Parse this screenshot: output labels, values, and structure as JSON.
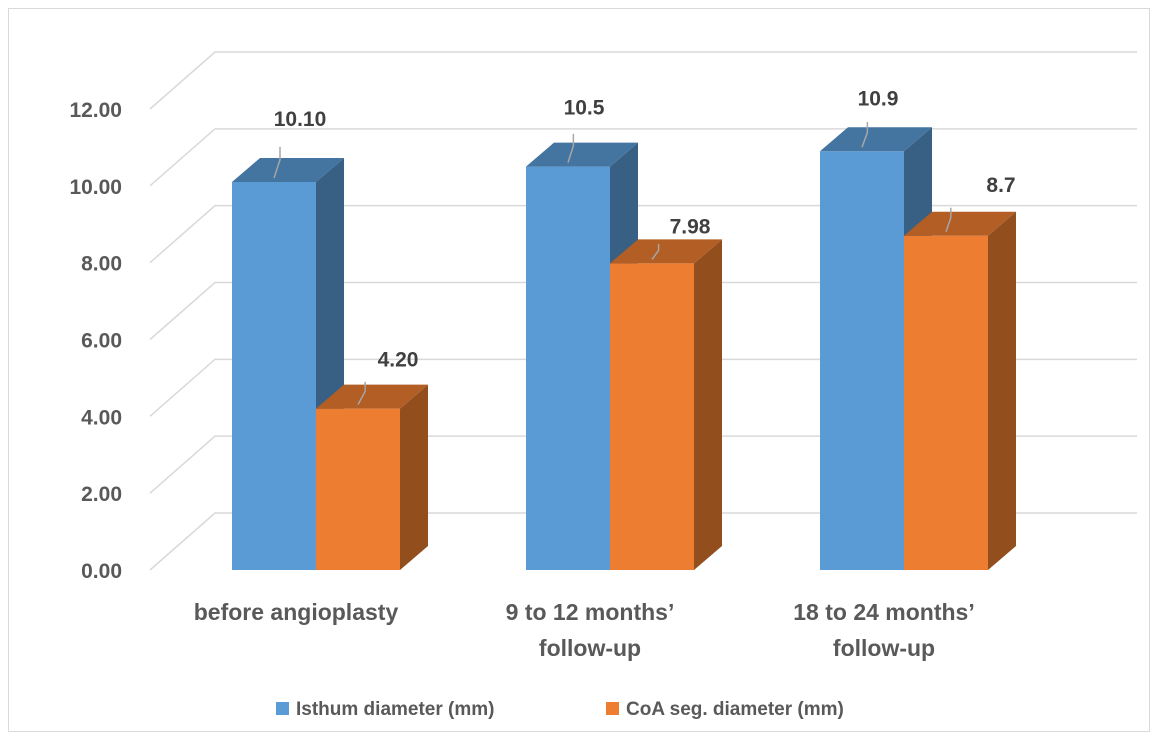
{
  "chart_data": {
    "type": "bar",
    "style": "3d-clustered-column",
    "categories": [
      [
        "before angioplasty"
      ],
      [
        "9 to 12 months’",
        "follow-up"
      ],
      [
        "18 to 24 months’",
        "follow-up"
      ]
    ],
    "series": [
      {
        "name": "Isthum diameter (mm)",
        "color": "#5b9bd5",
        "values": [
          10.1,
          10.5,
          10.9
        ],
        "labels": [
          "10.10",
          "10.5",
          "10.9"
        ]
      },
      {
        "name": "CoA seg. diameter (mm)",
        "color": "#ed7d31",
        "values": [
          4.2,
          7.98,
          8.7
        ],
        "labels": [
          "4.20",
          "7.98",
          "8.7"
        ]
      }
    ],
    "y_ticks": [
      "0.00",
      "2.00",
      "4.00",
      "6.00",
      "8.00",
      "10.00",
      "12.00"
    ],
    "ylim": [
      0,
      12
    ],
    "grid": true,
    "legend_position": "bottom"
  }
}
